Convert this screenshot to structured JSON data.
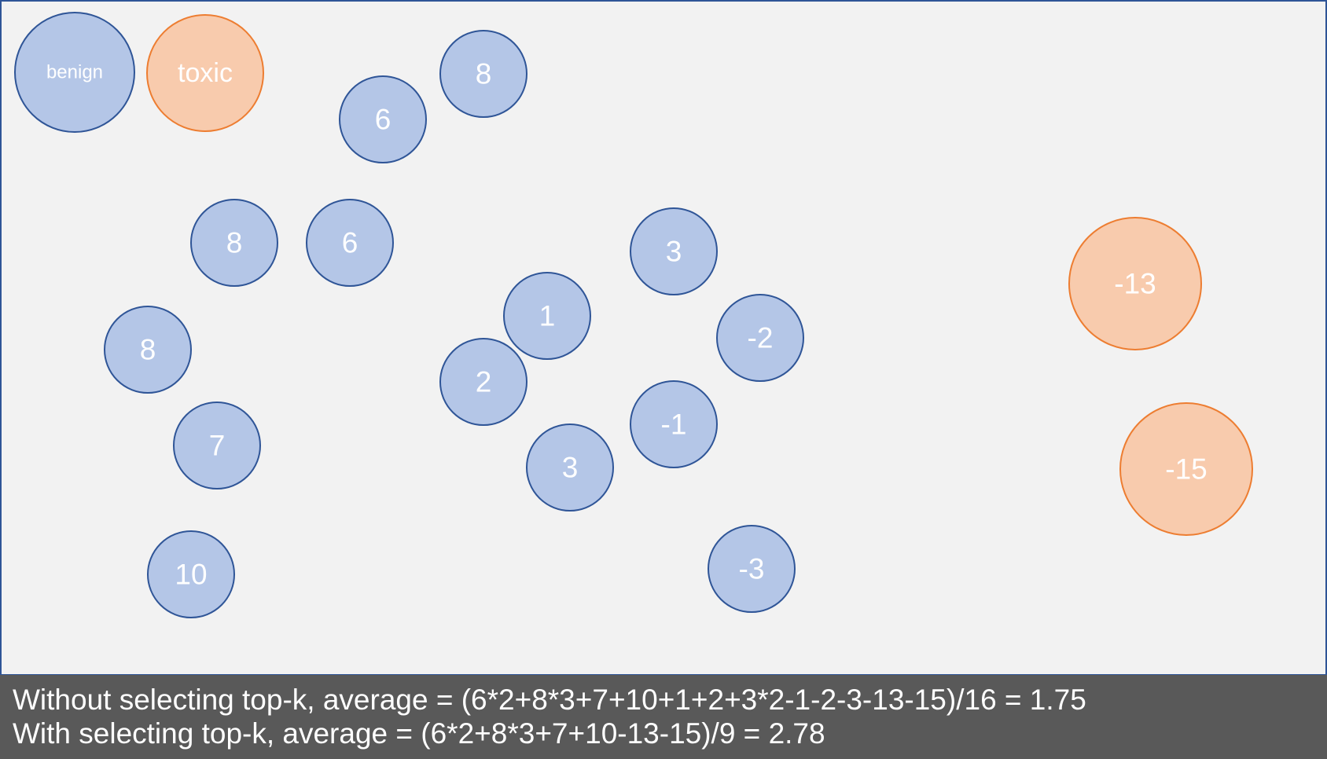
{
  "colors": {
    "background": "#f2f2f2",
    "frame": "#2f5597",
    "caption_background": "#595959",
    "caption_text": "#ffffff",
    "label_text": "#ffffff",
    "benign_fill": "#b4c6e7",
    "benign_stroke": "#2f5597",
    "toxic_fill": "#f8cbad",
    "toxic_stroke": "#ed7d31"
  },
  "legend": {
    "benign_label": "benign",
    "toxic_label": "toxic"
  },
  "nodes": [
    {
      "label": "8",
      "class": "benign"
    },
    {
      "label": "6",
      "class": "benign"
    },
    {
      "label": "8",
      "class": "benign"
    },
    {
      "label": "6",
      "class": "benign"
    },
    {
      "label": "3",
      "class": "benign"
    },
    {
      "label": "1",
      "class": "benign"
    },
    {
      "label": "-2",
      "class": "benign"
    },
    {
      "label": "8",
      "class": "benign"
    },
    {
      "label": "2",
      "class": "benign"
    },
    {
      "label": "-1",
      "class": "benign"
    },
    {
      "label": "7",
      "class": "benign"
    },
    {
      "label": "3",
      "class": "benign"
    },
    {
      "label": "10",
      "class": "benign"
    },
    {
      "label": "-3",
      "class": "benign"
    },
    {
      "label": "-13",
      "class": "toxic"
    },
    {
      "label": "-15",
      "class": "toxic"
    }
  ],
  "caption": {
    "line1": "Without selecting top-k, average = (6*2+8*3+7+10+1+2+3*2-1-2-3-13-15)/16 = 1.75",
    "line2": "With selecting top-k, average = (6*2+8*3+7+10-13-15)/9 = 2.78"
  }
}
